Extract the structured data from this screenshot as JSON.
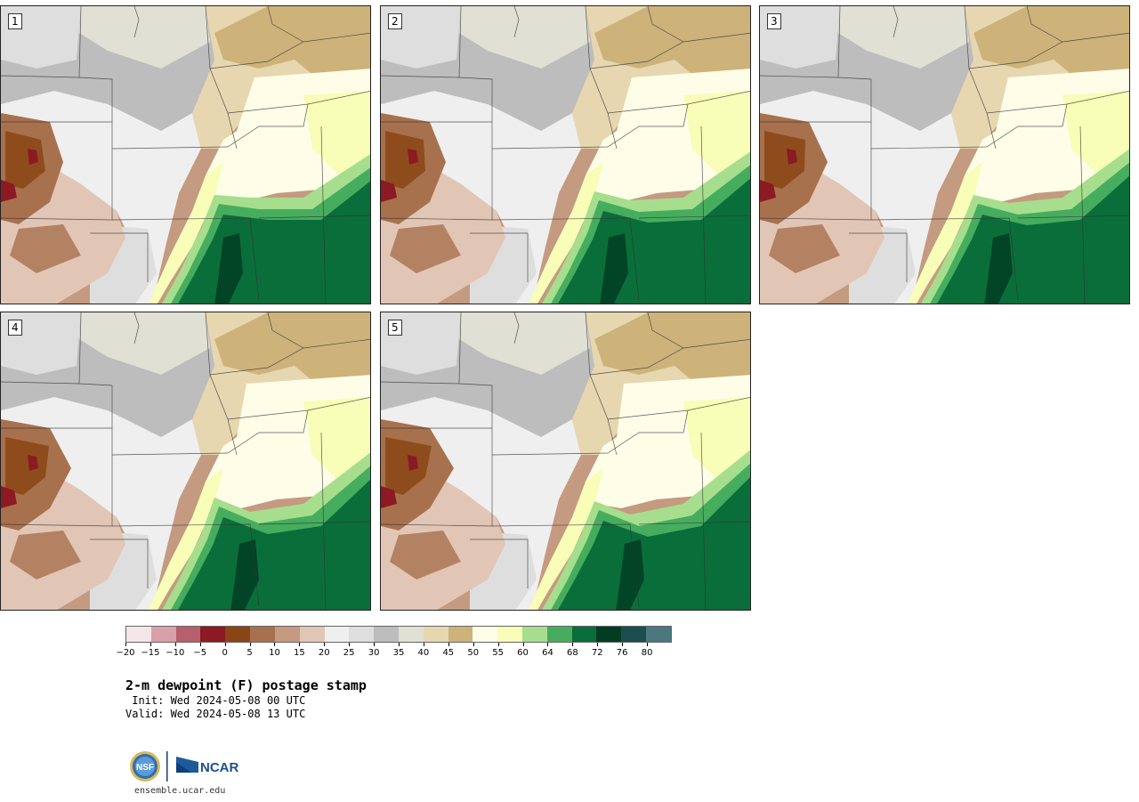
{
  "panels": [
    {
      "label": "1",
      "variant": 0
    },
    {
      "label": "2",
      "variant": 1
    },
    {
      "label": "3",
      "variant": 2
    },
    {
      "label": "4",
      "variant": 3
    },
    {
      "label": "5",
      "variant": 4
    }
  ],
  "colorbar": {
    "colors": [
      "#f5e6ea",
      "#d8a0a8",
      "#b5606a",
      "#8c1a22",
      "#8a4515",
      "#a8714d",
      "#c49a80",
      "#e2c6b5",
      "#efefef",
      "#dedede",
      "#bdbdbd",
      "#e1e0d4",
      "#e7d7b0",
      "#cdb37a",
      "#fefde8",
      "#f8fdb7",
      "#a6de8e",
      "#46ad5e",
      "#0a6e3a",
      "#003d23",
      "#1b4f4f",
      "#4c7780"
    ],
    "tick_labels": [
      "−20",
      "−15",
      "−10",
      "−5",
      "0",
      "5",
      "10",
      "15",
      "20",
      "25",
      "30",
      "35",
      "40",
      "45",
      "50",
      "55",
      "60",
      "64",
      "68",
      "72",
      "76",
      "80"
    ]
  },
  "title": "2-m dewpoint (F) postage stamp",
  "init_line": " Init: Wed 2024-05-08 00 UTC",
  "valid_line": "Valid: Wed 2024-05-08 13 UTC",
  "logo": {
    "nsf_text": "NSF",
    "ncar_text": "NCAR"
  },
  "website": "ensemble.ucar.edu"
}
